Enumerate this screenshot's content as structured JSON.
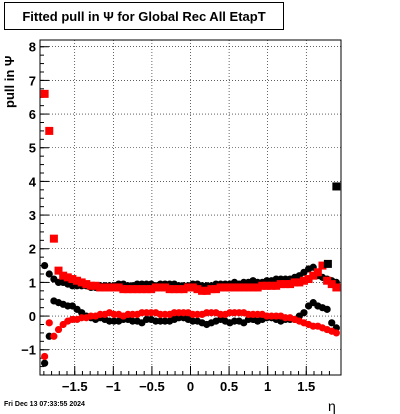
{
  "title": "Fitted pull in  Ψ  for Global Rec All EtapT",
  "timestamp": "Fri Dec 13 07:33:55 2024",
  "chart_data": {
    "type": "scatter",
    "title": "Fitted pull in  Ψ  for Global Rec All EtapT",
    "xlabel": "η",
    "ylabel": "pull in  Ψ",
    "xlim": [
      -1.95,
      1.95
    ],
    "ylim": [
      -1.75,
      8.2
    ],
    "x_ticks": [
      -1.5,
      -1,
      -0.5,
      0,
      0.5,
      1,
      1.5
    ],
    "x_tick_labels": [
      "−1.5",
      "−1",
      "−0.5",
      "0",
      "0.5",
      "1",
      "1.5"
    ],
    "y_ticks": [
      -1,
      0,
      1,
      2,
      3,
      4,
      5,
      6,
      7,
      8
    ],
    "y_tick_labels": [
      "−1",
      "0",
      "1",
      "2",
      "3",
      "4",
      "5",
      "6",
      "7",
      "8"
    ],
    "grid": true,
    "x": [
      -1.89,
      -1.83,
      -1.77,
      -1.71,
      -1.65,
      -1.59,
      -1.53,
      -1.47,
      -1.41,
      -1.35,
      -1.29,
      -1.23,
      -1.17,
      -1.11,
      -1.05,
      -0.99,
      -0.93,
      -0.87,
      -0.81,
      -0.75,
      -0.69,
      -0.63,
      -0.57,
      -0.51,
      -0.45,
      -0.39,
      -0.33,
      -0.27,
      -0.21,
      -0.15,
      -0.09,
      -0.03,
      0.03,
      0.09,
      0.15,
      0.21,
      0.27,
      0.33,
      0.39,
      0.45,
      0.51,
      0.57,
      0.63,
      0.69,
      0.75,
      0.81,
      0.87,
      0.93,
      0.99,
      1.05,
      1.11,
      1.17,
      1.23,
      1.29,
      1.35,
      1.41,
      1.47,
      1.53,
      1.59,
      1.65,
      1.71,
      1.77,
      1.83,
      1.89
    ],
    "series": [
      {
        "color": "#000000",
        "markers": "circle",
        "values": [
          -1.4,
          -0.6,
          0.45,
          0.4,
          0.35,
          0.3,
          0.3,
          0.2,
          0.1,
          0.0,
          -0.05,
          -0.1,
          -0.05,
          -0.1,
          -0.15,
          -0.15,
          -0.15,
          -0.1,
          -0.1,
          -0.15,
          -0.15,
          -0.2,
          -0.1,
          -0.1,
          -0.15,
          -0.15,
          -0.15,
          -0.15,
          -0.1,
          -0.05,
          -0.05,
          -0.1,
          -0.15,
          -0.15,
          -0.2,
          -0.25,
          -0.2,
          -0.15,
          -0.1,
          -0.15,
          -0.2,
          -0.15,
          -0.15,
          -0.2,
          -0.1,
          -0.1,
          -0.15,
          -0.1,
          -0.05,
          -0.05,
          -0.1,
          -0.15,
          -0.1,
          -0.1,
          -0.1,
          0.0,
          0.1,
          0.3,
          0.4,
          0.3,
          0.25,
          0.2,
          -0.2,
          -0.35
        ]
      },
      {
        "color": "#000000",
        "markers": "circle",
        "values": [
          1.5,
          1.25,
          1.1,
          1.0,
          1.0,
          0.95,
          0.9,
          0.9,
          0.9,
          0.9,
          0.85,
          0.85,
          0.9,
          0.9,
          0.9,
          0.9,
          0.95,
          0.95,
          0.9,
          0.9,
          0.95,
          0.95,
          0.95,
          0.95,
          0.9,
          0.95,
          0.95,
          0.95,
          0.95,
          0.9,
          0.9,
          0.9,
          0.95,
          0.95,
          0.9,
          0.9,
          0.9,
          0.95,
          0.95,
          0.95,
          0.95,
          1.0,
          0.95,
          1.0,
          1.0,
          1.05,
          1.0,
          1.0,
          1.05,
          1.05,
          1.1,
          1.1,
          1.1,
          1.1,
          1.15,
          1.2,
          1.3,
          1.4,
          1.45,
          1.2,
          1.15,
          1.1,
          1.05,
          1.0
        ]
      },
      {
        "color": "#ff0000",
        "markers": "circle",
        "values": [
          -1.2,
          -0.2,
          -0.6,
          -0.4,
          -0.25,
          -0.15,
          -0.1,
          -0.1,
          -0.05,
          -0.05,
          0.0,
          0.0,
          0.05,
          0.05,
          0.1,
          0.05,
          0.05,
          0.0,
          0.05,
          0.05,
          0.05,
          0.1,
          0.1,
          0.1,
          0.1,
          0.05,
          0.05,
          0.05,
          0.1,
          0.1,
          0.1,
          0.1,
          0.05,
          0.05,
          0.05,
          0.1,
          0.1,
          0.1,
          0.05,
          0.05,
          0.1,
          0.1,
          0.1,
          0.1,
          0.05,
          0.05,
          0.05,
          0.05,
          0.0,
          0.0,
          0.0,
          0.0,
          -0.05,
          -0.05,
          -0.1,
          -0.15,
          -0.2,
          -0.25,
          -0.3,
          -0.3,
          -0.35,
          -0.4,
          -0.45,
          -0.5
        ]
      },
      {
        "color": "#ff0000",
        "markers": "square",
        "values": [
          6.6,
          5.5,
          2.3,
          1.35,
          1.2,
          1.15,
          1.1,
          1.05,
          1.0,
          0.95,
          0.9,
          0.9,
          0.85,
          0.85,
          0.85,
          0.85,
          0.85,
          0.8,
          0.8,
          0.8,
          0.8,
          0.8,
          0.8,
          0.8,
          0.85,
          0.85,
          0.85,
          0.8,
          0.8,
          0.8,
          0.8,
          0.85,
          0.85,
          0.8,
          0.75,
          0.75,
          0.8,
          0.8,
          0.85,
          0.85,
          0.85,
          0.85,
          0.85,
          0.85,
          0.85,
          0.85,
          0.85,
          0.9,
          0.9,
          0.9,
          0.9,
          0.95,
          0.95,
          0.95,
          1.0,
          1.0,
          1.05,
          1.1,
          1.2,
          1.3,
          1.5,
          1.05,
          0.95,
          0.85
        ]
      },
      {
        "color": "#000000",
        "markers": "square",
        "x": [
          1.78,
          1.89
        ],
        "values": [
          1.55,
          3.85
        ]
      }
    ]
  }
}
